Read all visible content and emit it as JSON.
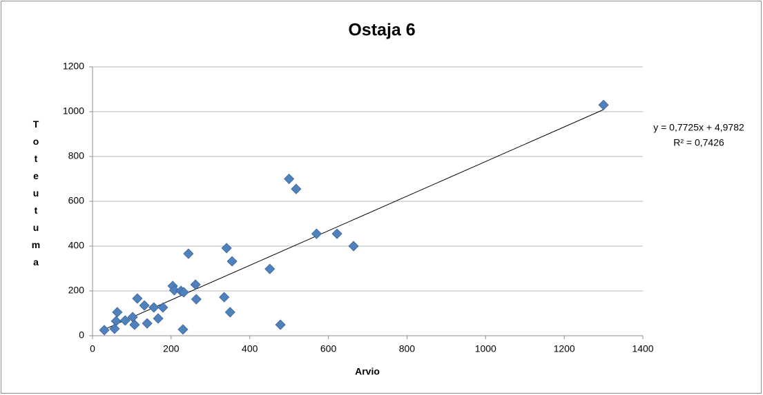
{
  "chart_data": {
    "type": "scatter",
    "title": "Ostaja 6",
    "x_label": "Arvio",
    "y_label": "Toteutuma",
    "x": [
      1300,
      500,
      518,
      570,
      622,
      664,
      341,
      355,
      451,
      335,
      350,
      478,
      244,
      262,
      264,
      204,
      208,
      225,
      232,
      230,
      114,
      132,
      156,
      179,
      167,
      139,
      63,
      60,
      83,
      102,
      107,
      56,
      30
    ],
    "series": [
      {
        "name": "Toteutuma",
        "color": "#4f81bd",
        "values": [
          1030,
          700,
          655,
          455,
          455,
          400,
          391,
          332,
          298,
          172,
          105,
          49,
          366,
          228,
          163,
          222,
          203,
          200,
          194,
          28,
          166,
          135,
          126,
          126,
          77,
          55,
          105,
          65,
          68,
          83,
          49,
          31,
          25
        ]
      }
    ],
    "trendline": {
      "slope": 0.7725,
      "intercept": 4.9782,
      "label": "y = 0,7725x + 4,9782",
      "r2_label": "R² = 0,7426",
      "color": "#000000"
    },
    "xlim": [
      0,
      1400
    ],
    "xticks": [
      0,
      200,
      400,
      600,
      800,
      1000,
      1200,
      1400
    ],
    "ylim": [
      0,
      1200
    ],
    "yticks": [
      0,
      200,
      400,
      600,
      800,
      1000,
      1200
    ],
    "grid": true
  }
}
